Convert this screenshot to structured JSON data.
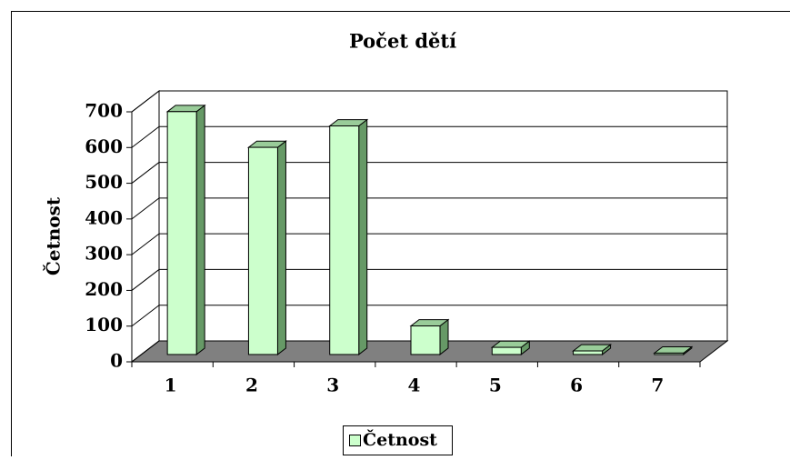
{
  "chart_data": {
    "type": "bar3d",
    "title": "Počet dětí",
    "y_label": "Četnost",
    "categories": [
      "1",
      "2",
      "3",
      "4",
      "5",
      "6",
      "7"
    ],
    "series": [
      {
        "name": "Četnost",
        "color": "#ccffcc",
        "values": [
          680,
          580,
          640,
          80,
          20,
          10,
          4
        ]
      }
    ],
    "ylim": [
      0,
      700
    ],
    "yticks": [
      0,
      100,
      200,
      300,
      400,
      500,
      600,
      700
    ],
    "grid": true,
    "legend": "bottom"
  }
}
